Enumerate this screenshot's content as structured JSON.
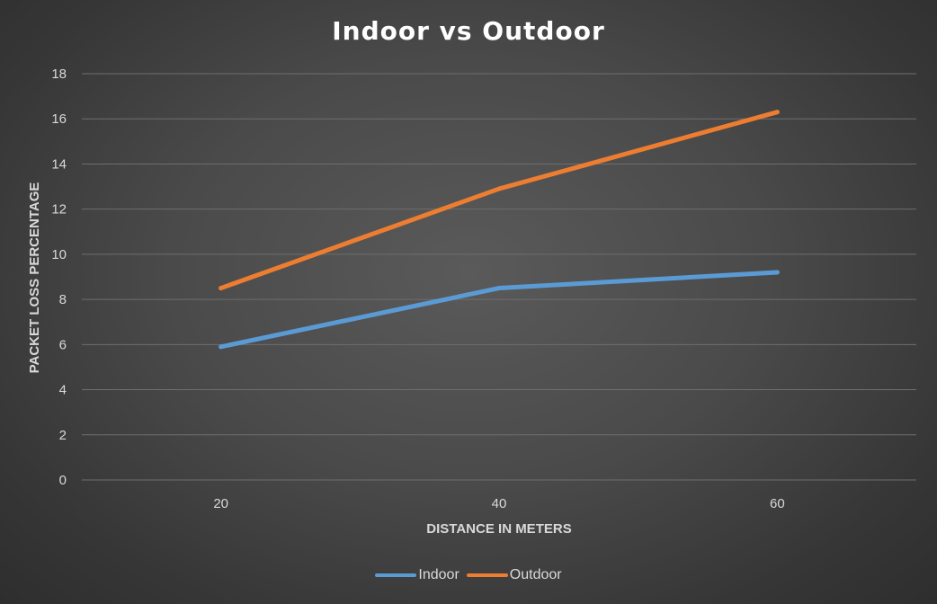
{
  "chart_data": {
    "type": "line",
    "title": "Indoor vs Outdoor",
    "xlabel": "DISTANCE IN METERS",
    "ylabel": "PACKET LOSS PERCENTAGE",
    "categories": [
      "20",
      "40",
      "60"
    ],
    "ylim": [
      0,
      18
    ],
    "yticks": [
      "0",
      "2",
      "4",
      "6",
      "8",
      "10",
      "12",
      "14",
      "16",
      "18"
    ],
    "grid": true,
    "legend_position": "bottom",
    "series": [
      {
        "name": "Indoor",
        "values": [
          5.9,
          8.5,
          9.2
        ],
        "color": "#5b9bd5"
      },
      {
        "name": "Outdoor",
        "values": [
          8.5,
          12.9,
          16.3
        ],
        "color": "#ed7d31"
      }
    ]
  }
}
